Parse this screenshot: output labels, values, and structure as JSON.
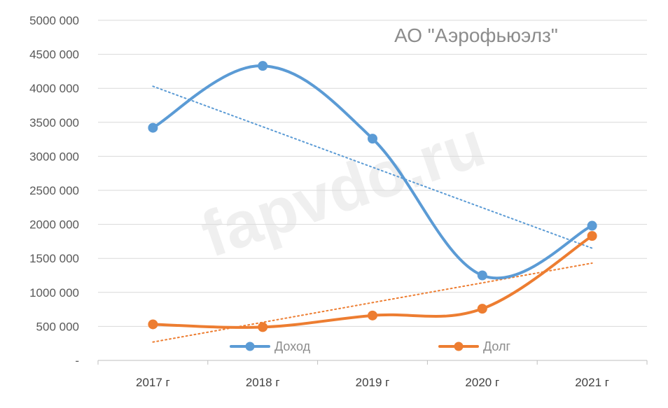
{
  "chart_data": {
    "type": "line",
    "title": "АО \"Аэрофьюэлз\"",
    "watermark": "fapvdo.ru",
    "categories": [
      "2017 г",
      "2018 г",
      "2019 г",
      "2020 г",
      "2021 г"
    ],
    "ylim": [
      0,
      5000000
    ],
    "yticks": [
      {
        "value": 0,
        "label": "-"
      },
      {
        "value": 500000,
        "label": "500 000"
      },
      {
        "value": 1000000,
        "label": "1000 000"
      },
      {
        "value": 1500000,
        "label": "1500 000"
      },
      {
        "value": 2000000,
        "label": "2000 000"
      },
      {
        "value": 2500000,
        "label": "2500 000"
      },
      {
        "value": 3000000,
        "label": "3000 000"
      },
      {
        "value": 3500000,
        "label": "3500 000"
      },
      {
        "value": 4000000,
        "label": "4000 000"
      },
      {
        "value": 4500000,
        "label": "4500 000"
      },
      {
        "value": 5000000,
        "label": "5000 000"
      }
    ],
    "grid": true,
    "legend_position": "bottom",
    "series": [
      {
        "name": "Доход",
        "color": "#5B9BD5",
        "smooth": true,
        "values": [
          3420000,
          4330000,
          3260000,
          1250000,
          1980000
        ],
        "trendline": {
          "style": "dotted",
          "start": 4030000,
          "end": 1650000
        }
      },
      {
        "name": "Долг",
        "color": "#ED7D31",
        "smooth": true,
        "values": [
          530000,
          490000,
          660000,
          760000,
          1830000
        ],
        "trendline": {
          "style": "dotted",
          "start": 270000,
          "end": 1430000
        }
      }
    ]
  }
}
